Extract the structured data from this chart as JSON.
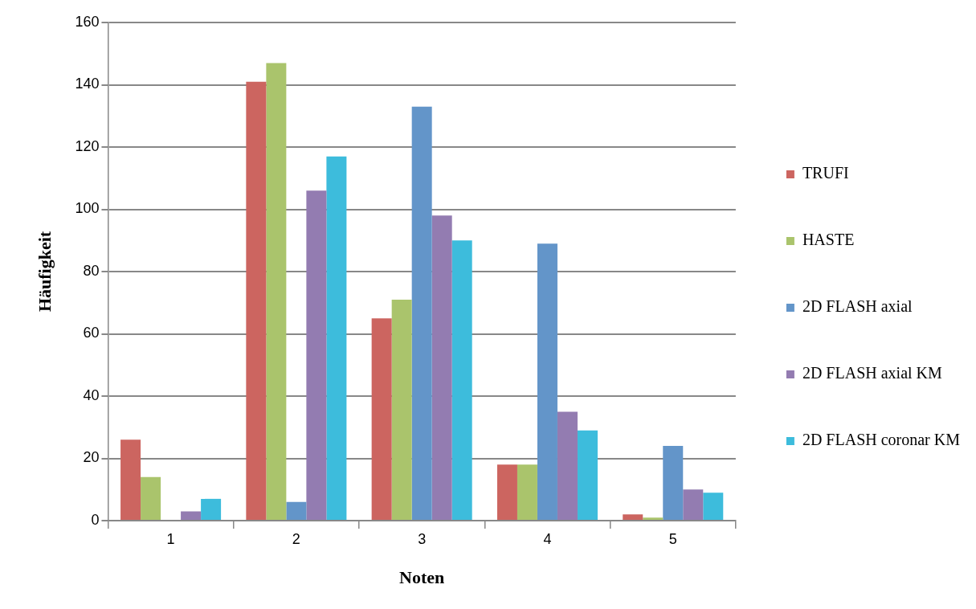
{
  "chart_data": {
    "type": "bar",
    "xlabel": "Noten",
    "ylabel": "Häufigkeit",
    "categories": [
      "1",
      "2",
      "3",
      "4",
      "5"
    ],
    "series": [
      {
        "name": "TRUFI",
        "color": "#cc6560",
        "values": [
          26,
          141,
          65,
          18,
          2
        ]
      },
      {
        "name": "HASTE",
        "color": "#aac46c",
        "values": [
          14,
          147,
          71,
          18,
          1
        ]
      },
      {
        "name": "2D FLASH axial",
        "color": "#6395c9",
        "values": [
          0,
          6,
          133,
          89,
          24
        ]
      },
      {
        "name": "2D FLASH axial KM",
        "color": "#937cb1",
        "values": [
          3,
          106,
          98,
          35,
          10
        ]
      },
      {
        "name": "2D FLASH coronar KM",
        "color": "#3dbcdc",
        "values": [
          7,
          117,
          90,
          29,
          9
        ]
      }
    ],
    "ylim": [
      0,
      160
    ],
    "yticks": [
      0,
      20,
      40,
      60,
      80,
      100,
      120,
      140,
      160
    ],
    "grid": "y",
    "legend": "right"
  }
}
